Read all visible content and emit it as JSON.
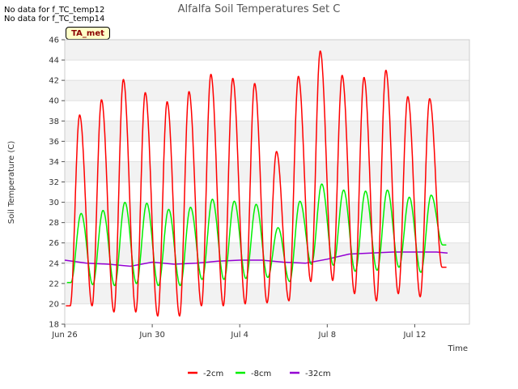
{
  "no_data_notes": [
    "No data for f_TC_temp12",
    "No data for f_TC_temp14"
  ],
  "site_badge": "TA_met",
  "chart_data": {
    "type": "line",
    "title": "Alfalfa Soil Temperatures Set C",
    "xlabel": "Time",
    "ylabel": "Soil Temperature (C)",
    "ylim": [
      18,
      46
    ],
    "yticks": [
      18,
      20,
      22,
      24,
      26,
      28,
      30,
      32,
      34,
      36,
      38,
      40,
      42,
      44,
      46
    ],
    "xlim": [
      "2023-06-26",
      "2023-07-14 12:00"
    ],
    "xticks": [
      {
        "label": "Jun 26",
        "day": 0
      },
      {
        "label": "Jun 30",
        "day": 4
      },
      {
        "label": "Jul 4",
        "day": 8
      },
      {
        "label": "Jul 8",
        "day": 12
      },
      {
        "label": "Jul 12",
        "day": 16
      }
    ],
    "grid": true,
    "legend_position": "bottom-center",
    "series": [
      {
        "name": "-2cm",
        "color": "#ff0000",
        "daily_min": [
          19.8,
          19.8,
          19.2,
          19.2,
          18.8,
          18.8,
          19.8,
          19.8,
          20.0,
          20.1,
          20.3,
          22.2,
          22.3,
          21.0,
          20.3,
          21.0,
          20.7,
          23.6
        ],
        "daily_max": [
          38.6,
          40.1,
          42.1,
          40.8,
          39.9,
          40.9,
          42.6,
          42.2,
          41.7,
          35.0,
          42.4,
          44.9,
          42.5,
          42.3,
          43.0,
          40.4,
          40.2
        ]
      },
      {
        "name": "-8cm",
        "color": "#00ee00",
        "daily_min": [
          22.1,
          21.9,
          21.8,
          22.0,
          21.8,
          21.8,
          22.4,
          22.4,
          22.5,
          22.6,
          22.2,
          23.9,
          23.8,
          23.2,
          23.3,
          23.6,
          23.1,
          25.8
        ],
        "daily_max": [
          28.9,
          29.2,
          30.0,
          29.9,
          29.3,
          29.5,
          30.3,
          30.1,
          29.8,
          27.5,
          30.1,
          31.8,
          31.2,
          31.1,
          31.2,
          30.5,
          30.7
        ]
      },
      {
        "name": "-32cm",
        "color": "#9400d3",
        "points": [
          [
            0.0,
            24.3
          ],
          [
            1.0,
            24.0
          ],
          [
            2.0,
            23.9
          ],
          [
            3.0,
            23.7
          ],
          [
            4.0,
            24.1
          ],
          [
            5.0,
            23.9
          ],
          [
            6.0,
            24.0
          ],
          [
            7.0,
            24.2
          ],
          [
            8.0,
            24.3
          ],
          [
            9.0,
            24.3
          ],
          [
            10.0,
            24.1
          ],
          [
            11.0,
            24.0
          ],
          [
            12.0,
            24.4
          ],
          [
            13.0,
            24.9
          ],
          [
            14.0,
            25.0
          ],
          [
            15.0,
            25.1
          ],
          [
            16.0,
            25.1
          ],
          [
            17.0,
            25.1
          ],
          [
            17.5,
            25.0
          ]
        ]
      }
    ]
  }
}
